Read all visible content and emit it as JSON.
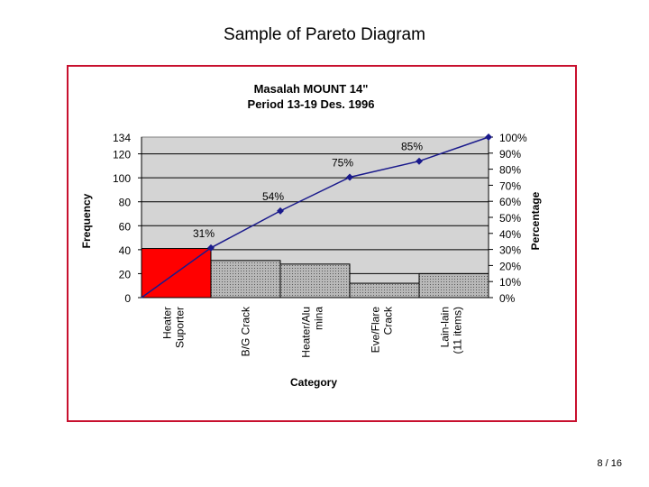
{
  "slide": {
    "title": "Sample of Pareto Diagram",
    "page_number": "8 / 16"
  },
  "chart_data": {
    "type": "bar",
    "title": "Masalah MOUNT 14\"",
    "subtitle": "Period 13-19 Des. 1996",
    "xlabel": "Category",
    "ylabel": "Frequency",
    "y2label": "Percentage",
    "categories": [
      "Heater Suporter",
      "B/G Crack",
      "Heater/Alu mina",
      "Eve/Flare Crack",
      "Lain-lain (11 items)"
    ],
    "values": [
      41,
      31,
      28,
      12,
      20
    ],
    "ylim": [
      0,
      134
    ],
    "yticks": [
      "0",
      "20",
      "40",
      "60",
      "80",
      "100",
      "120",
      "134"
    ],
    "y2lim": [
      0,
      100
    ],
    "y2ticks": [
      "0%",
      "10%",
      "20%",
      "30%",
      "40%",
      "50%",
      "60%",
      "70%",
      "80%",
      "90%",
      "100%"
    ],
    "cumulative_percent": [
      0,
      31,
      54,
      75,
      85,
      100
    ],
    "cumulative_labels": [
      "31%",
      "54%",
      "75%",
      "85%"
    ],
    "grid": true,
    "colors": {
      "first_bar": "#ff0000",
      "other_bars": "#a8a8a8",
      "plot_background": "#d4d4d4",
      "line": "#1a1a8c",
      "frame": "#c8102e"
    }
  }
}
